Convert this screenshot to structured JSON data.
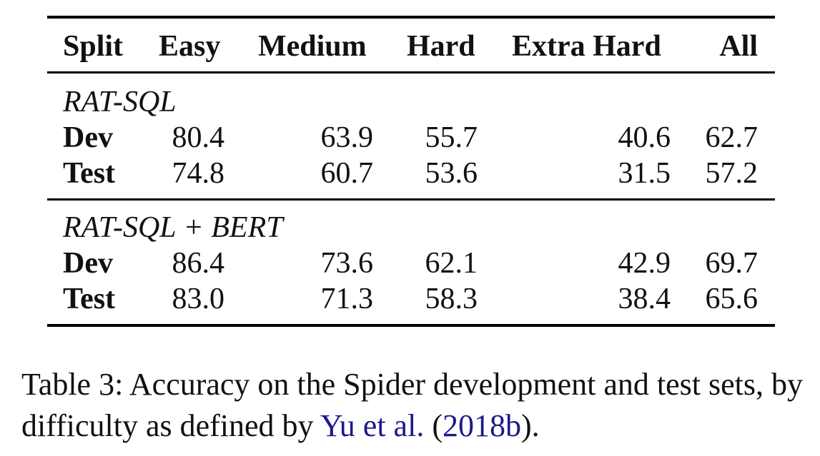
{
  "table": {
    "headers": [
      "Split",
      "Easy",
      "Medium",
      "Hard",
      "Extra Hard",
      "All"
    ],
    "groups": [
      {
        "name": "RAT-SQL",
        "rows": [
          {
            "label": "Dev",
            "values": [
              "80.4",
              "63.9",
              "55.7",
              "40.6",
              "62.7"
            ]
          },
          {
            "label": "Test",
            "values": [
              "74.8",
              "60.7",
              "53.6",
              "31.5",
              "57.2"
            ]
          }
        ]
      },
      {
        "name": "RAT-SQL + BERT",
        "rows": [
          {
            "label": "Dev",
            "values": [
              "86.4",
              "73.6",
              "62.1",
              "42.9",
              "69.7"
            ]
          },
          {
            "label": "Test",
            "values": [
              "83.0",
              "71.3",
              "58.3",
              "38.4",
              "65.6"
            ]
          }
        ]
      }
    ]
  },
  "caption": {
    "prefix": "Table 3: Accuracy on the Spider development and test sets, by difficulty as defined by ",
    "cite_authors": "Yu et al.",
    "open_paren": " (",
    "cite_year": "2018b",
    "suffix": ")."
  }
}
